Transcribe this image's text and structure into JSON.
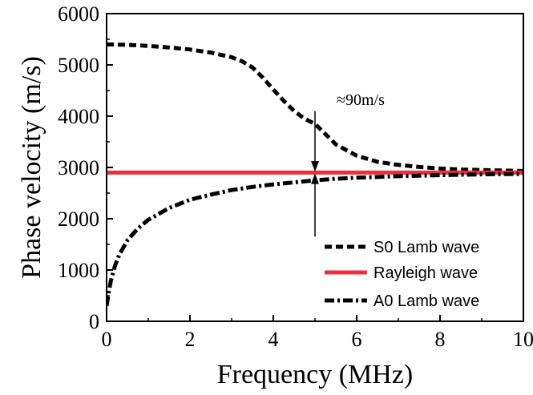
{
  "chart_data": {
    "type": "line",
    "xlabel": "Frequency (MHz)",
    "ylabel": "Phase velocity (m/s)",
    "xlim": [
      0,
      10
    ],
    "ylim": [
      0,
      6000
    ],
    "xticks": [
      0,
      2,
      4,
      6,
      8,
      10
    ],
    "yticks": [
      0,
      1000,
      2000,
      3000,
      4000,
      5000,
      6000
    ],
    "grid": false,
    "legend_position": "bottom-right",
    "series": [
      {
        "name": "S0 Lamb wave",
        "style": "dashed",
        "color": "#000000",
        "x": [
          0,
          0.5,
          1,
          1.5,
          2,
          2.5,
          3,
          3.25,
          3.5,
          3.75,
          4,
          4.25,
          4.5,
          4.75,
          5,
          5.25,
          5.5,
          6,
          6.5,
          7,
          7.5,
          8,
          8.5,
          9,
          9.5,
          10
        ],
        "y": [
          5400,
          5390,
          5370,
          5340,
          5300,
          5240,
          5150,
          5070,
          4950,
          4750,
          4520,
          4300,
          4100,
          3950,
          3850,
          3650,
          3450,
          3230,
          3110,
          3050,
          3010,
          2980,
          2960,
          2950,
          2940,
          2930
        ]
      },
      {
        "name": "Rayleigh wave",
        "style": "solid",
        "color": "#e8313a",
        "x": [
          0,
          10
        ],
        "y": [
          2900,
          2900
        ]
      },
      {
        "name": "A0 Lamb wave",
        "style": "dash-dot",
        "color": "#000000",
        "x": [
          0,
          0.05,
          0.1,
          0.2,
          0.3,
          0.5,
          0.75,
          1,
          1.5,
          2,
          2.5,
          3,
          3.5,
          4,
          4.5,
          5,
          5.5,
          6,
          7,
          8,
          9,
          10
        ],
        "y": [
          300,
          560,
          780,
          1080,
          1290,
          1580,
          1810,
          1980,
          2210,
          2370,
          2470,
          2560,
          2620,
          2670,
          2710,
          2750,
          2780,
          2800,
          2830,
          2850,
          2865,
          2875
        ]
      }
    ],
    "annotation": {
      "text": "≈90m/s",
      "x": 5,
      "arrow_down_from": 4100,
      "arrow_down_to": 2920,
      "arrow_up_from": 1650,
      "arrow_up_to": 2880
    }
  }
}
